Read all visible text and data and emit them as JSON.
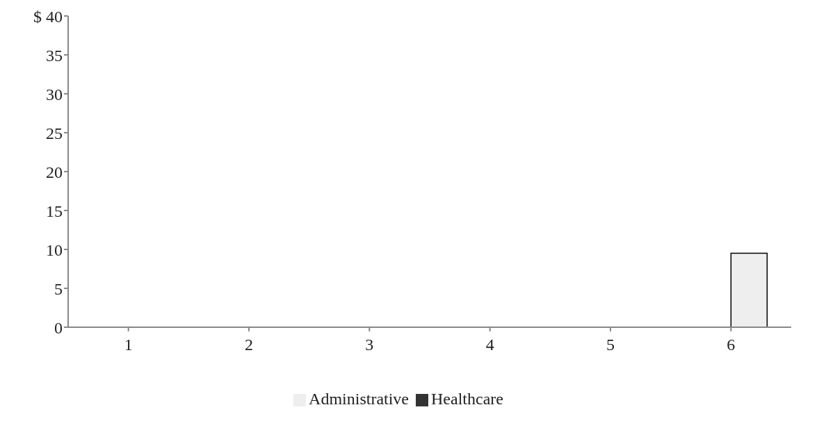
{
  "chart_data": {
    "type": "bar",
    "categories": [
      "1",
      "2",
      "3",
      "4",
      "5",
      "6"
    ],
    "series": [
      {
        "name": "Healthcare",
        "color": "#333333",
        "values": [
          0,
          0,
          0,
          0,
          0,
          0
        ]
      },
      {
        "name": "Administrative",
        "color": "#eeeeee",
        "values": [
          0,
          0,
          0,
          0,
          0,
          9.5
        ]
      }
    ],
    "ylim": [
      0,
      40
    ],
    "yticks": [
      0,
      5,
      10,
      15,
      20,
      25,
      30,
      35,
      {
        "value": 40,
        "label": "$ 40"
      }
    ],
    "grid": false,
    "legend": "bottom"
  }
}
